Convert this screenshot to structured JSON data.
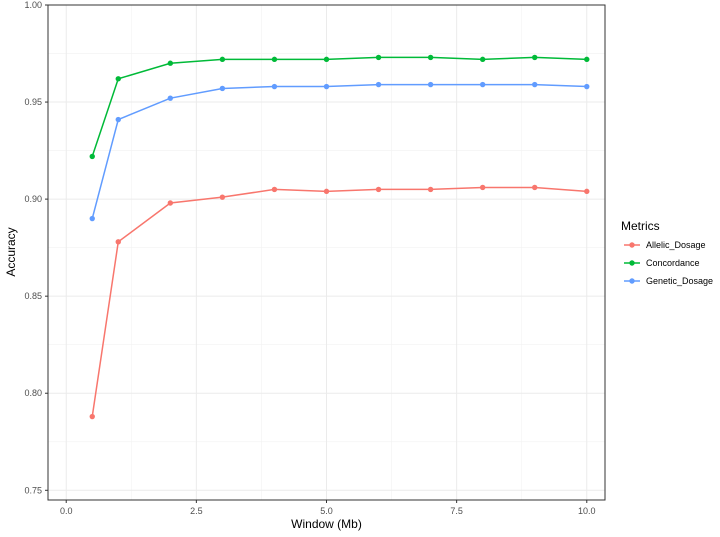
{
  "chart_data": {
    "type": "line",
    "title": "",
    "xlabel": "Window (Mb)",
    "ylabel": "Accuracy",
    "xlim": [
      -0.35,
      10.35
    ],
    "ylim": [
      0.745,
      1.0
    ],
    "x_ticks": [
      0.0,
      2.5,
      5.0,
      7.5,
      10.0
    ],
    "x_tick_labels": [
      "0.0",
      "2.5",
      "5.0",
      "7.5",
      "10.0"
    ],
    "y_ticks": [
      0.75,
      0.8,
      0.85,
      0.9,
      0.95,
      1.0
    ],
    "y_tick_labels": [
      "0.75",
      "0.80",
      "0.85",
      "0.90",
      "0.95",
      "1.00"
    ],
    "grid": true,
    "legend": {
      "title": "Metrics",
      "position": "right"
    },
    "x": [
      0.5,
      1,
      2,
      3,
      4,
      5,
      6,
      7,
      8,
      9,
      10
    ],
    "series": [
      {
        "name": "Allelic_Dosage",
        "color": "#F8766D",
        "values": [
          0.788,
          0.878,
          0.898,
          0.901,
          0.905,
          0.904,
          0.905,
          0.905,
          0.906,
          0.906,
          0.904
        ]
      },
      {
        "name": "Concordance",
        "color": "#00BA38",
        "values": [
          0.922,
          0.962,
          0.97,
          0.972,
          0.972,
          0.972,
          0.973,
          0.973,
          0.972,
          0.973,
          0.972
        ]
      },
      {
        "name": "Genetic_Dosage",
        "color": "#619CFF",
        "values": [
          0.89,
          0.941,
          0.952,
          0.957,
          0.958,
          0.958,
          0.959,
          0.959,
          0.959,
          0.959,
          0.958
        ]
      }
    ]
  }
}
